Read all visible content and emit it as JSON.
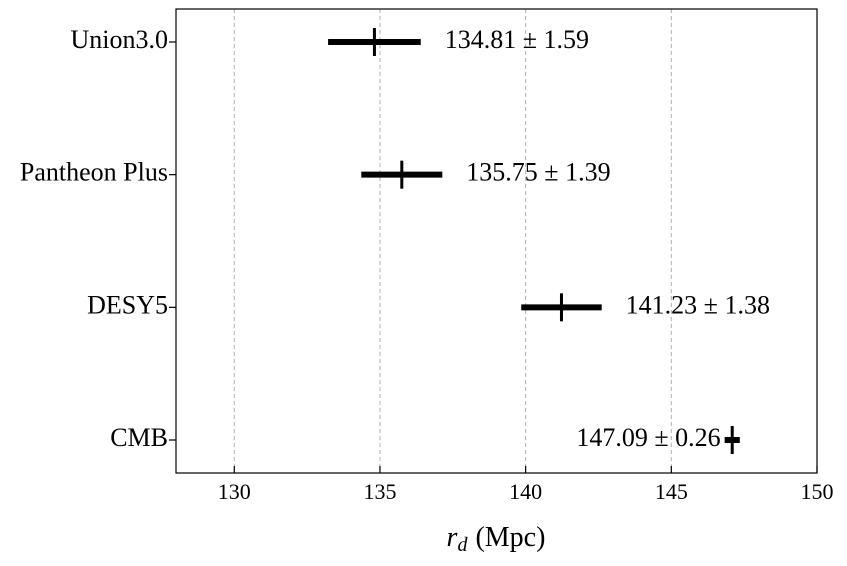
{
  "chart_data": {
    "type": "errorbar",
    "categories": [
      "Union3.0",
      "Pantheon Plus",
      "DESY5",
      "CMB"
    ],
    "values": [
      134.81,
      135.75,
      141.23,
      147.09
    ],
    "errors": [
      1.59,
      1.39,
      1.38,
      0.26
    ],
    "value_labels": [
      "134.81 ± 1.59",
      "135.75 ± 1.39",
      "141.23 ± 1.38",
      "147.09 ± 0.26"
    ],
    "color": "#000000",
    "x_label": {
      "symbol": "r",
      "subscript": "d",
      "unit": "(Mpc)"
    },
    "xlim": [
      128,
      150
    ],
    "xticks": [
      130,
      135,
      140,
      145,
      150
    ],
    "grid": true
  }
}
